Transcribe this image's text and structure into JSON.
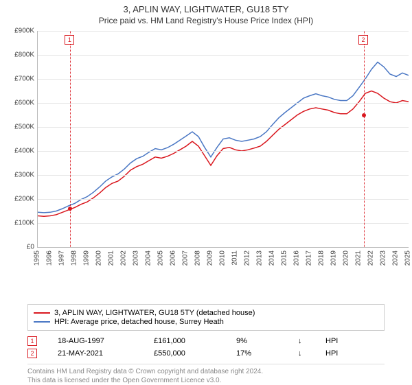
{
  "title": "3, APLIN WAY, LIGHTWATER, GU18 5TY",
  "subtitle": "Price paid vs. HM Land Registry's House Price Index (HPI)",
  "chart": {
    "type": "line",
    "background_color": "#ffffff",
    "grid_color": "#e6e6e6",
    "axis_color": "#bbbbbb",
    "label_fontsize": 10,
    "title_fontsize": 13,
    "x_start_year": 1995,
    "x_end_year": 2025,
    "y_min": 0,
    "y_max": 900000,
    "y_step": 100000,
    "y_labels": [
      "£0",
      "£100K",
      "£200K",
      "£300K",
      "£400K",
      "£500K",
      "£600K",
      "£700K",
      "£800K",
      "£900K"
    ],
    "x_labels": [
      "1995",
      "1996",
      "1997",
      "1998",
      "1999",
      "2000",
      "2001",
      "2002",
      "2003",
      "2004",
      "2005",
      "2006",
      "2007",
      "2008",
      "2009",
      "2010",
      "2011",
      "2012",
      "2013",
      "2014",
      "2015",
      "2016",
      "2017",
      "2018",
      "2019",
      "2020",
      "2021",
      "2022",
      "2023",
      "2024",
      "2025"
    ],
    "series": [
      {
        "name": "3, APLIN WAY, LIGHTWATER, GU18 5TY (detached house)",
        "color": "#d9171e",
        "line_width": 1.5,
        "values_k_by_year": {
          "1995": 130,
          "1995.5": 128,
          "1996": 130,
          "1996.5": 135,
          "1997": 145,
          "1997.5": 155,
          "1998": 165,
          "1998.5": 178,
          "1999": 188,
          "1999.5": 205,
          "2000": 225,
          "2000.5": 248,
          "2001": 265,
          "2001.5": 275,
          "2002": 295,
          "2002.5": 320,
          "2003": 335,
          "2003.5": 345,
          "2004": 360,
          "2004.5": 375,
          "2005": 370,
          "2005.5": 378,
          "2006": 390,
          "2006.5": 405,
          "2007": 420,
          "2007.5": 440,
          "2008": 420,
          "2008.5": 380,
          "2009": 340,
          "2009.5": 380,
          "2010": 410,
          "2010.5": 415,
          "2011": 405,
          "2011.5": 400,
          "2012": 405,
          "2012.5": 412,
          "2013": 420,
          "2013.5": 440,
          "2014": 465,
          "2014.5": 490,
          "2015": 510,
          "2015.5": 530,
          "2016": 550,
          "2016.5": 565,
          "2017": 575,
          "2017.5": 580,
          "2018": 575,
          "2018.5": 570,
          "2019": 560,
          "2019.5": 555,
          "2020": 555,
          "2020.5": 575,
          "2021": 605,
          "2021.5": 640,
          "2022": 650,
          "2022.5": 640,
          "2023": 620,
          "2023.5": 605,
          "2024": 600,
          "2024.5": 610,
          "2025": 605
        }
      },
      {
        "name": "HPI: Average price, detached house, Surrey Heath",
        "color": "#4a77c4",
        "line_width": 1.5,
        "values_k_by_year": {
          "1995": 145,
          "1995.5": 143,
          "1996": 145,
          "1996.5": 150,
          "1997": 160,
          "1997.5": 172,
          "1998": 182,
          "1998.5": 198,
          "1999": 210,
          "1999.5": 228,
          "2000": 250,
          "2000.5": 275,
          "2001": 292,
          "2001.5": 305,
          "2002": 325,
          "2002.5": 350,
          "2003": 368,
          "2003.5": 378,
          "2004": 395,
          "2004.5": 410,
          "2005": 405,
          "2005.5": 414,
          "2006": 428,
          "2006.5": 445,
          "2007": 462,
          "2007.5": 480,
          "2008": 460,
          "2008.5": 415,
          "2009": 375,
          "2009.5": 415,
          "2010": 450,
          "2010.5": 455,
          "2011": 445,
          "2011.5": 440,
          "2012": 445,
          "2012.5": 450,
          "2013": 460,
          "2013.5": 480,
          "2014": 510,
          "2014.5": 538,
          "2015": 560,
          "2015.5": 580,
          "2016": 600,
          "2016.5": 620,
          "2017": 630,
          "2017.5": 638,
          "2018": 630,
          "2018.5": 625,
          "2019": 615,
          "2019.5": 610,
          "2020": 610,
          "2020.5": 630,
          "2021": 665,
          "2021.5": 700,
          "2022": 740,
          "2022.5": 770,
          "2023": 750,
          "2023.5": 720,
          "2024": 710,
          "2024.5": 725,
          "2025": 715
        }
      }
    ],
    "sale_markers": [
      {
        "n": "1",
        "year": 1997.63,
        "value_k": 161,
        "color": "#d9171e"
      },
      {
        "n": "2",
        "year": 2021.39,
        "value_k": 550,
        "color": "#d9171e"
      }
    ]
  },
  "legend": {
    "items": [
      {
        "color": "#d9171e",
        "label": "3, APLIN WAY, LIGHTWATER, GU18 5TY (detached house)"
      },
      {
        "color": "#4a77c4",
        "label": "HPI: Average price, detached house, Surrey Heath"
      }
    ]
  },
  "sales": [
    {
      "n": "1",
      "color": "#d9171e",
      "date": "18-AUG-1997",
      "price": "£161,000",
      "diff": "9%",
      "arrow": "↓",
      "cmp": "HPI"
    },
    {
      "n": "2",
      "color": "#d9171e",
      "date": "21-MAY-2021",
      "price": "£550,000",
      "diff": "17%",
      "arrow": "↓",
      "cmp": "HPI"
    }
  ],
  "footer": {
    "line1": "Contains HM Land Registry data © Crown copyright and database right 2024.",
    "line2": "This data is licensed under the Open Government Licence v3.0."
  }
}
